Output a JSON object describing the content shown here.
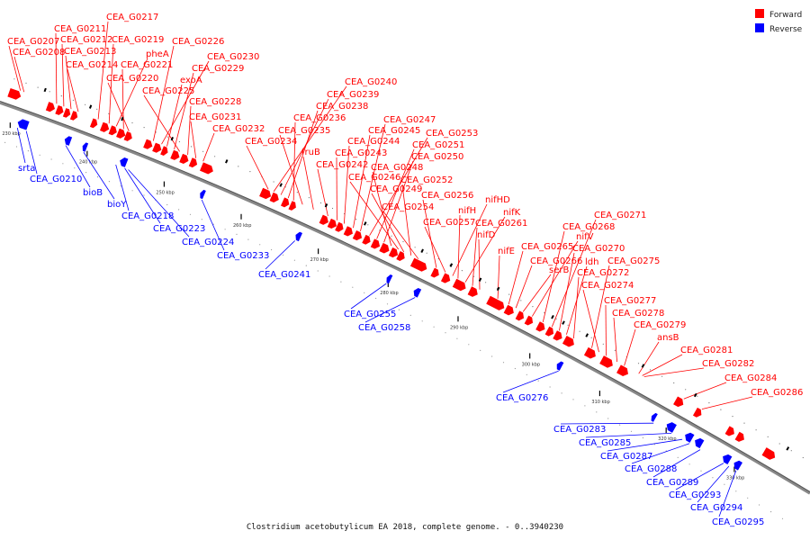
{
  "legend": {
    "forward": {
      "label": "Forward",
      "color": "#ff0000"
    },
    "reverse": {
      "label": "Reverse",
      "color": "#0000ff"
    }
  },
  "caption": "Clostridium acetobutylicum EA 2018, complete genome. - 0..3940230",
  "ticks": [
    "230 kbp",
    "240 kbp",
    "250 kbp",
    "260 kbp",
    "270 kbp",
    "280 kbp",
    "290 kbp",
    "300 kbp",
    "310 kbp",
    "320 kbp",
    "330 kbp"
  ],
  "forward_labels": [
    "CEA_G0207",
    "CEA_G0208",
    "CEA_G0211",
    "CEA_G0212",
    "CEA_G0213",
    "CEA_G0214",
    "CEA_G0217",
    "CEA_G0219",
    "pheA",
    "CEA_G0221",
    "CEA_G0220",
    "CEA_G0226",
    "CEA_G0230",
    "exoA",
    "CEA_G0229",
    "CEA_G0225",
    "CEA_G0228",
    "CEA_G0231",
    "CEA_G0232",
    "CEA_G0234",
    "CEA_G0240",
    "CEA_G0239",
    "CEA_G0238",
    "CEA_G0236",
    "CEA_G0235",
    "fruB",
    "CEA_G0242",
    "CEA_G0243",
    "CEA_G0244",
    "CEA_G0245",
    "CEA_G0247",
    "CEA_G0253",
    "CEA_G0251",
    "CEA_G0250",
    "CEA_G0248",
    "CEA_G0246",
    "CEA_G0249",
    "CEA_G0252",
    "CEA_G0254",
    "CEA_G0256",
    "CEA_G0257",
    "nifHD",
    "nifH",
    "nifK",
    "CEA_G0261",
    "nifD",
    "nifE",
    "CEA_G0265",
    "CEA_G0266",
    "serB",
    "nifV",
    "CEA_G0268",
    "CEA_G0271",
    "CEA_G0270",
    "ldh",
    "CEA_G0272",
    "CEA_G0275",
    "CEA_G0274",
    "CEA_G0277",
    "CEA_G0278",
    "CEA_G0279",
    "ansB",
    "CEA_G0281",
    "CEA_G0282",
    "CEA_G0284",
    "CEA_G0286"
  ],
  "reverse_labels": [
    "srta",
    "CEA_G0210",
    "bioB",
    "bioY",
    "CEA_G0218",
    "CEA_G0223",
    "CEA_G0224",
    "CEA_G0233",
    "CEA_G0241",
    "CEA_G0255",
    "CEA_G0258",
    "CEA_G0276",
    "CEA_G0283",
    "CEA_G0285",
    "CEA_G0287",
    "CEA_G0288",
    "CEA_G0289",
    "CEA_G0293",
    "CEA_G0294",
    "CEA_G0295"
  ]
}
